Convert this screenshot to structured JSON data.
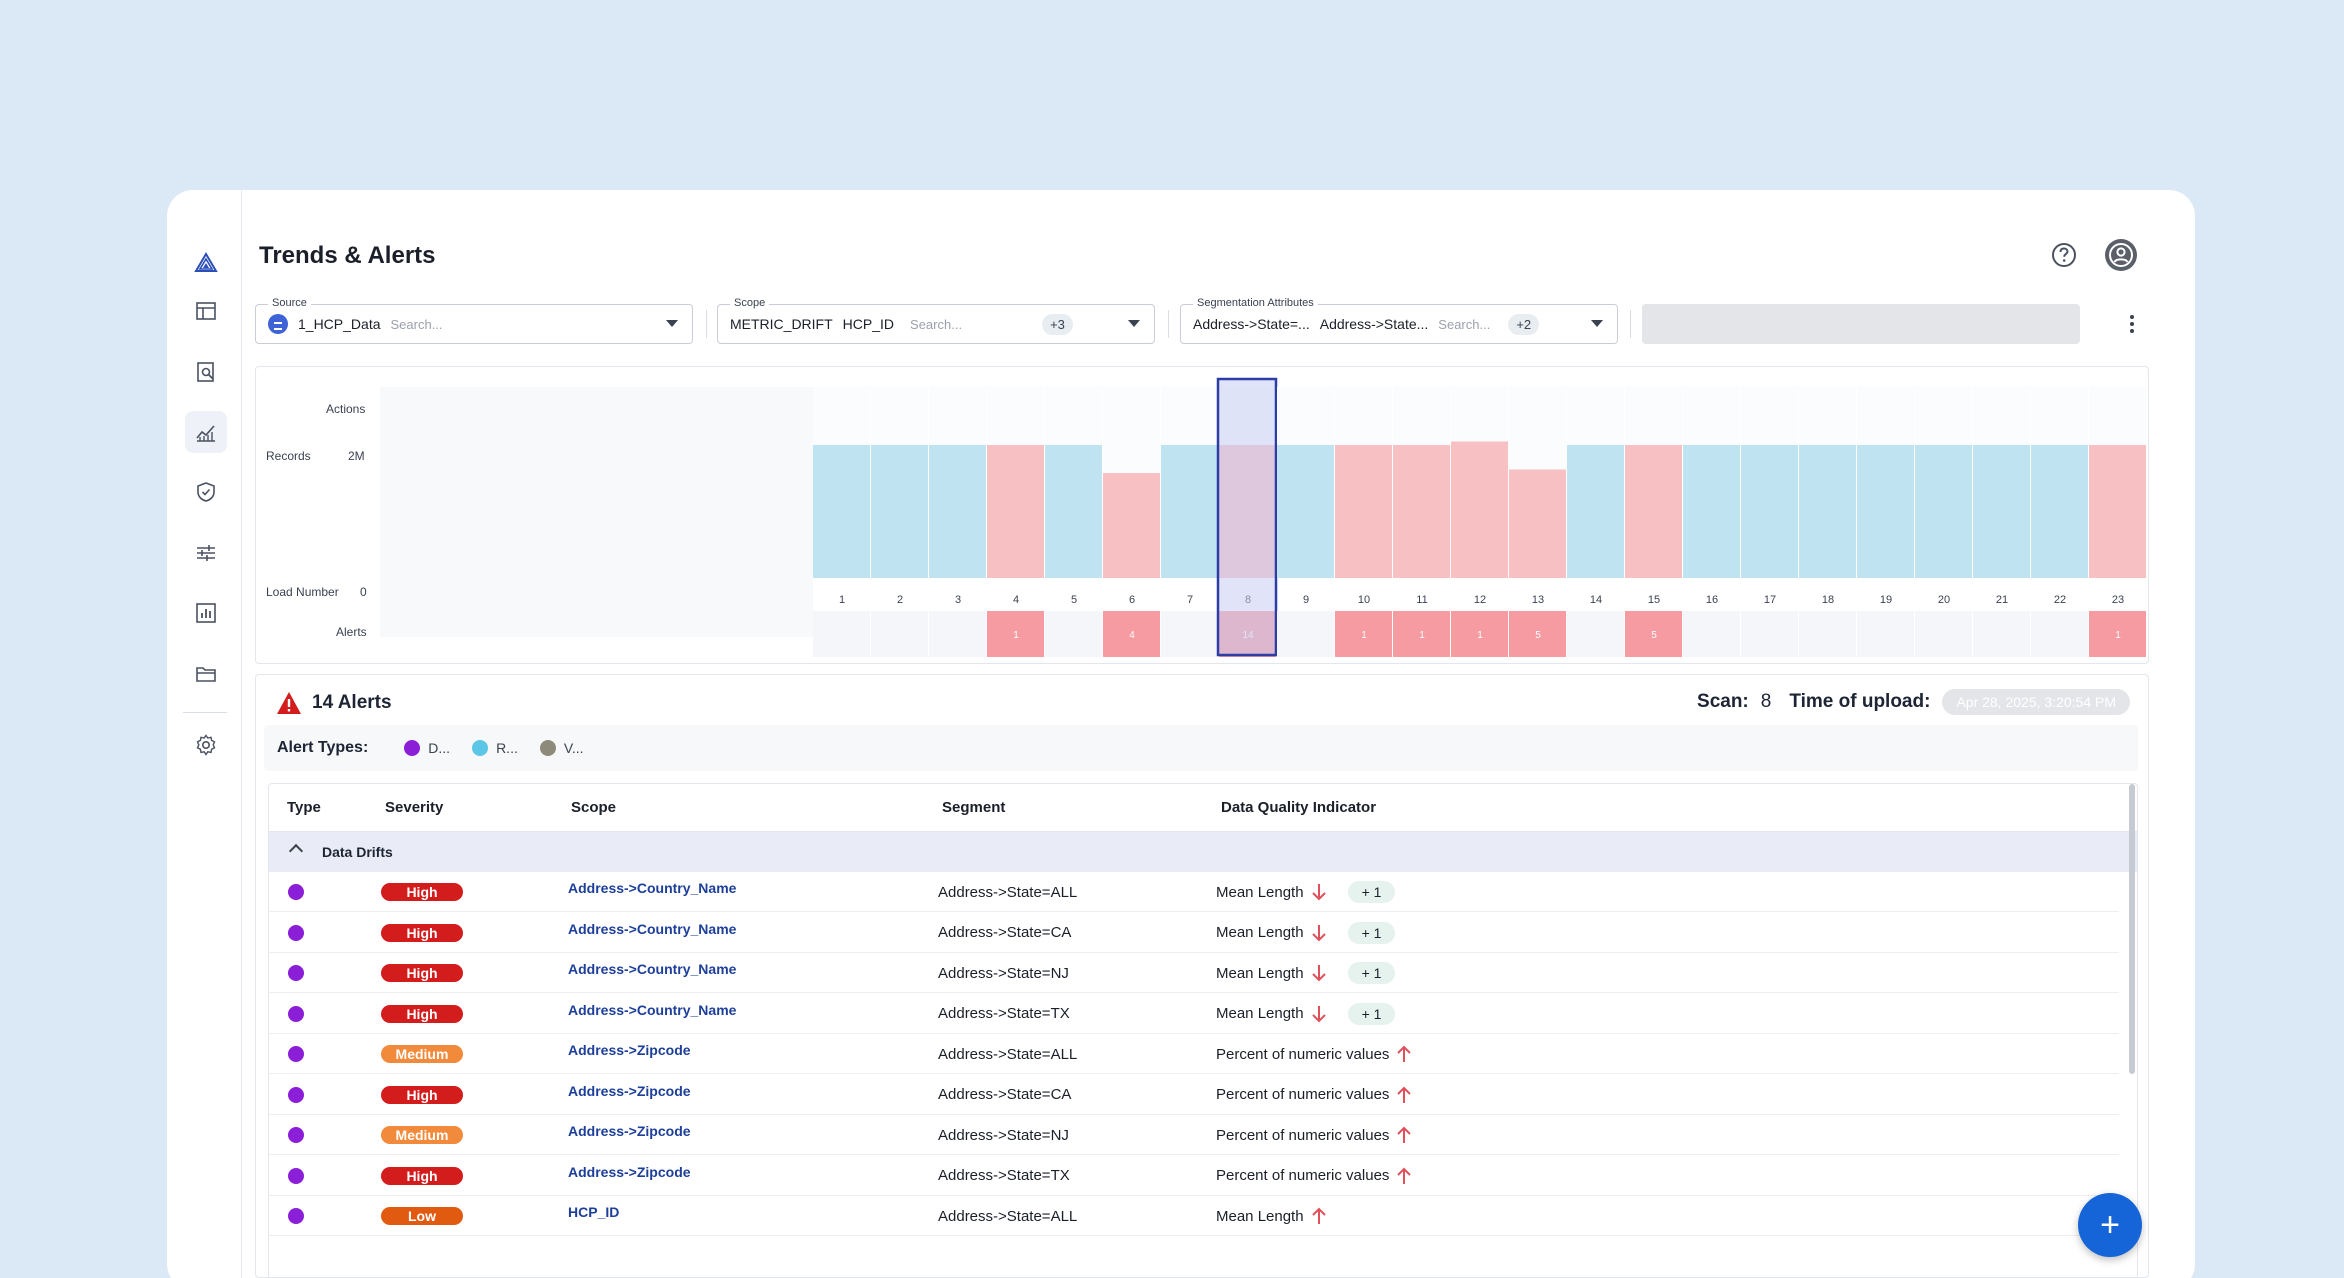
{
  "page": {
    "title": "Trends & Alerts"
  },
  "sidebar": {
    "items": [
      {
        "name": "logo-icon",
        "active": false
      },
      {
        "name": "table-icon",
        "active": false
      },
      {
        "name": "search-document-icon",
        "active": false
      },
      {
        "name": "line-chart-icon",
        "active": true
      },
      {
        "name": "shield-check-icon",
        "active": false
      },
      {
        "name": "sliders-icon",
        "active": false
      },
      {
        "name": "bar-chart-icon",
        "active": false
      },
      {
        "name": "folder-icon",
        "active": false
      },
      {
        "name": "gear-icon",
        "active": false
      }
    ]
  },
  "filters": {
    "source": {
      "label": "Source",
      "value": "1_HCP_Data",
      "placeholder": "Search..."
    },
    "scope": {
      "label": "Scope",
      "values": [
        "METRIC_DRIFT",
        "HCP_ID"
      ],
      "placeholder": "Search...",
      "more": "+3"
    },
    "segmentation": {
      "label": "Segmentation Attributes",
      "values": [
        "Address->State=...",
        "Address->State..."
      ],
      "placeholder": "Search...",
      "more": "+2"
    }
  },
  "chart": {
    "row_labels": {
      "actions": "Actions",
      "records": "Records",
      "records_tick": "2M",
      "load_number": "Load Number",
      "load_tick": "0",
      "alerts": "Alerts"
    },
    "selected_load": 8,
    "loads": [
      {
        "n": 1,
        "status": "ok",
        "alerts": null,
        "level": 0.38
      },
      {
        "n": 2,
        "status": "ok",
        "alerts": null,
        "level": 0.38
      },
      {
        "n": 3,
        "status": "ok",
        "alerts": null,
        "level": 0.38
      },
      {
        "n": 4,
        "status": "alert",
        "alerts": "1",
        "level": 0.38
      },
      {
        "n": 5,
        "status": "ok",
        "alerts": null,
        "level": 0.38
      },
      {
        "n": 6,
        "status": "alert",
        "alerts": "4",
        "level": 0.3
      },
      {
        "n": 7,
        "status": "ok",
        "alerts": null,
        "level": 0.38
      },
      {
        "n": 8,
        "status": "alert",
        "alerts": "14",
        "level": 0.38
      },
      {
        "n": 9,
        "status": "ok",
        "alerts": null,
        "level": 0.38
      },
      {
        "n": 10,
        "status": "alert",
        "alerts": "1",
        "level": 0.38
      },
      {
        "n": 11,
        "status": "alert",
        "alerts": "1",
        "level": 0.38
      },
      {
        "n": 12,
        "status": "alert",
        "alerts": "1",
        "level": 0.39
      },
      {
        "n": 13,
        "status": "alert",
        "alerts": "5",
        "level": 0.31
      },
      {
        "n": 14,
        "status": "ok",
        "alerts": null,
        "level": 0.38
      },
      {
        "n": 15,
        "status": "alert",
        "alerts": "5",
        "level": 0.38
      },
      {
        "n": 16,
        "status": "ok",
        "alerts": null,
        "level": 0.38
      },
      {
        "n": 17,
        "status": "ok",
        "alerts": null,
        "level": 0.38
      },
      {
        "n": 18,
        "status": "ok",
        "alerts": null,
        "level": 0.38
      },
      {
        "n": 19,
        "status": "ok",
        "alerts": null,
        "level": 0.38
      },
      {
        "n": 20,
        "status": "ok",
        "alerts": null,
        "level": 0.38
      },
      {
        "n": 21,
        "status": "ok",
        "alerts": null,
        "level": 0.38
      },
      {
        "n": 22,
        "status": "ok",
        "alerts": null,
        "level": 0.38
      },
      {
        "n": 23,
        "status": "alert",
        "alerts": "1",
        "level": 0.38
      }
    ],
    "colors": {
      "ok": "#bfe3f1",
      "alert": "#f7c1c4",
      "alert_cell": "#f59ba1",
      "selected_border": "#2c3da8",
      "selected_fill": "#c9cdf2"
    }
  },
  "alerts": {
    "title": "14 Alerts",
    "scan_label": "Scan:",
    "scan_value": "8",
    "upload_label": "Time of upload:",
    "upload_value": "Apr 28, 2025, 3:20:54 PM",
    "types_label": "Alert Types:",
    "types": [
      {
        "label": "D...",
        "color": "#8b1fd8"
      },
      {
        "label": "R...",
        "color": "#5cc6e6"
      },
      {
        "label": "V...",
        "color": "#8d8a7c"
      }
    ]
  },
  "table": {
    "headers": {
      "type": "Type",
      "severity": "Severity",
      "scope": "Scope",
      "segment": "Segment",
      "dqi": "Data Quality Indicator"
    },
    "group": "Data Drifts",
    "rows": [
      {
        "severity": "High",
        "sev_class": "high",
        "scope": "Address->Country_Name",
        "segment": "Address->State=ALL",
        "dqi": "Mean Length",
        "direction": "down",
        "more": "+ 1"
      },
      {
        "severity": "High",
        "sev_class": "high",
        "scope": "Address->Country_Name",
        "segment": "Address->State=CA",
        "dqi": "Mean Length",
        "direction": "down",
        "more": "+ 1"
      },
      {
        "severity": "High",
        "sev_class": "high",
        "scope": "Address->Country_Name",
        "segment": "Address->State=NJ",
        "dqi": "Mean Length",
        "direction": "down",
        "more": "+ 1"
      },
      {
        "severity": "High",
        "sev_class": "high",
        "scope": "Address->Country_Name",
        "segment": "Address->State=TX",
        "dqi": "Mean Length",
        "direction": "down",
        "more": "+ 1"
      },
      {
        "severity": "Medium",
        "sev_class": "medium",
        "scope": "Address->Zipcode",
        "segment": "Address->State=ALL",
        "dqi": "Percent of numeric values",
        "direction": "up",
        "more": null
      },
      {
        "severity": "High",
        "sev_class": "high",
        "scope": "Address->Zipcode",
        "segment": "Address->State=CA",
        "dqi": "Percent of numeric values",
        "direction": "up",
        "more": null
      },
      {
        "severity": "Medium",
        "sev_class": "medium",
        "scope": "Address->Zipcode",
        "segment": "Address->State=NJ",
        "dqi": "Percent of numeric values",
        "direction": "up",
        "more": null
      },
      {
        "severity": "High",
        "sev_class": "high",
        "scope": "Address->Zipcode",
        "segment": "Address->State=TX",
        "dqi": "Percent of numeric values",
        "direction": "up",
        "more": null
      },
      {
        "severity": "Low",
        "sev_class": "low",
        "scope": "HCP_ID",
        "segment": "Address->State=ALL",
        "dqi": "Mean Length",
        "direction": "up",
        "more": null
      }
    ]
  }
}
